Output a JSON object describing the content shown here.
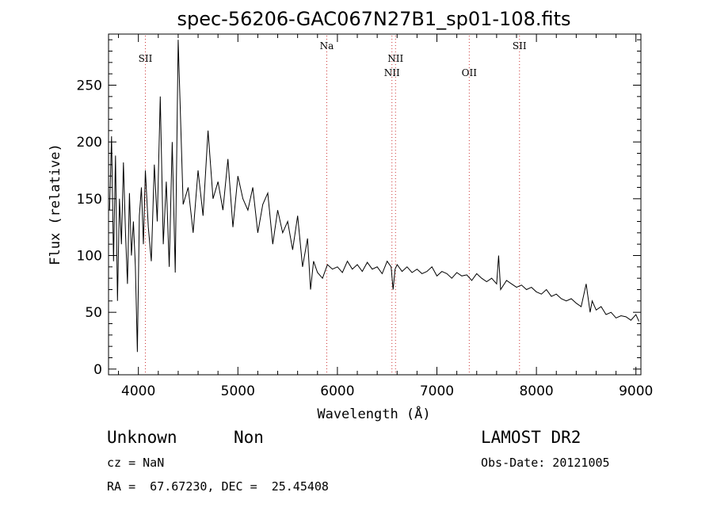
{
  "chart_data": {
    "type": "line",
    "title": "spec-56206-GAC067N27B1_sp01-108.fits",
    "xlabel": "Wavelength (Å)",
    "ylabel": "Flux (relative)",
    "xlim": [
      3700,
      9050
    ],
    "ylim": [
      -5,
      295
    ],
    "xticks": [
      4000,
      5000,
      6000,
      7000,
      8000,
      9000
    ],
    "yticks": [
      0,
      50,
      100,
      150,
      200,
      250
    ],
    "grid": false,
    "lines": [
      {
        "label": "SII",
        "x": 4070,
        "label_row": 1
      },
      {
        "label": "Na",
        "x": 5893,
        "label_row": 0
      },
      {
        "label": "NII",
        "x": 6548,
        "label_row": 2
      },
      {
        "label": "NII",
        "x": 6584,
        "label_row": 1
      },
      {
        "label": "OII",
        "x": 7325,
        "label_row": 2
      },
      {
        "label": "SII",
        "x": 7830,
        "label_row": 0
      }
    ],
    "series": [
      {
        "x": [
          3710,
          3730,
          3750,
          3770,
          3790,
          3810,
          3830,
          3850,
          3870,
          3890,
          3910,
          3930,
          3950,
          3970,
          3990,
          4010,
          4030,
          4050,
          4070,
          4100,
          4130,
          4160,
          4190,
          4220,
          4250,
          4280,
          4310,
          4340,
          4370,
          4400,
          4450,
          4500,
          4550,
          4600,
          4650,
          4700,
          4750,
          4800,
          4850,
          4900,
          4950,
          5000,
          5050,
          5100,
          5150,
          5200,
          5250,
          5300,
          5350,
          5400,
          5450,
          5500,
          5550,
          5600,
          5650,
          5700,
          5730,
          5760,
          5800,
          5850,
          5900,
          5950,
          6000,
          6050,
          6100,
          6150,
          6200,
          6250,
          6300,
          6350,
          6400,
          6450,
          6500,
          6540,
          6560,
          6580,
          6600,
          6650,
          6700,
          6750,
          6800,
          6850,
          6900,
          6950,
          7000,
          7050,
          7100,
          7150,
          7200,
          7250,
          7300,
          7350,
          7400,
          7450,
          7500,
          7550,
          7600,
          7620,
          7640,
          7700,
          7750,
          7800,
          7850,
          7900,
          7950,
          8000,
          8050,
          8100,
          8150,
          8200,
          8250,
          8300,
          8350,
          8400,
          8450,
          8500,
          8540,
          8560,
          8600,
          8650,
          8700,
          8750,
          8800,
          8850,
          8900,
          8950,
          9000,
          9030
        ],
        "y": [
          140,
          205,
          95,
          188,
          60,
          150,
          110,
          182,
          120,
          75,
          155,
          100,
          130,
          90,
          15,
          135,
          160,
          110,
          175,
          125,
          95,
          180,
          130,
          240,
          110,
          165,
          90,
          200,
          85,
          290,
          145,
          160,
          120,
          175,
          135,
          210,
          150,
          165,
          140,
          185,
          125,
          170,
          150,
          140,
          160,
          120,
          145,
          155,
          110,
          140,
          120,
          130,
          105,
          135,
          90,
          115,
          70,
          95,
          85,
          80,
          92,
          88,
          90,
          85,
          95,
          88,
          92,
          86,
          94,
          88,
          90,
          84,
          95,
          90,
          70,
          88,
          92,
          86,
          90,
          85,
          88,
          84,
          86,
          90,
          82,
          86,
          84,
          80,
          85,
          82,
          83,
          78,
          84,
          80,
          77,
          80,
          75,
          100,
          70,
          78,
          75,
          72,
          74,
          70,
          72,
          68,
          66,
          70,
          64,
          66,
          62,
          60,
          62,
          58,
          55,
          75,
          50,
          60,
          52,
          55,
          48,
          50,
          45,
          47,
          46,
          43,
          48,
          42
        ]
      }
    ]
  },
  "info": {
    "class": "Unknown",
    "subclass": "Non",
    "survey": "LAMOST DR2",
    "cz": "cz = NaN",
    "obs_date": "Obs-Date: 20121005",
    "coords": "RA =  67.67230, DEC =  25.45408"
  }
}
